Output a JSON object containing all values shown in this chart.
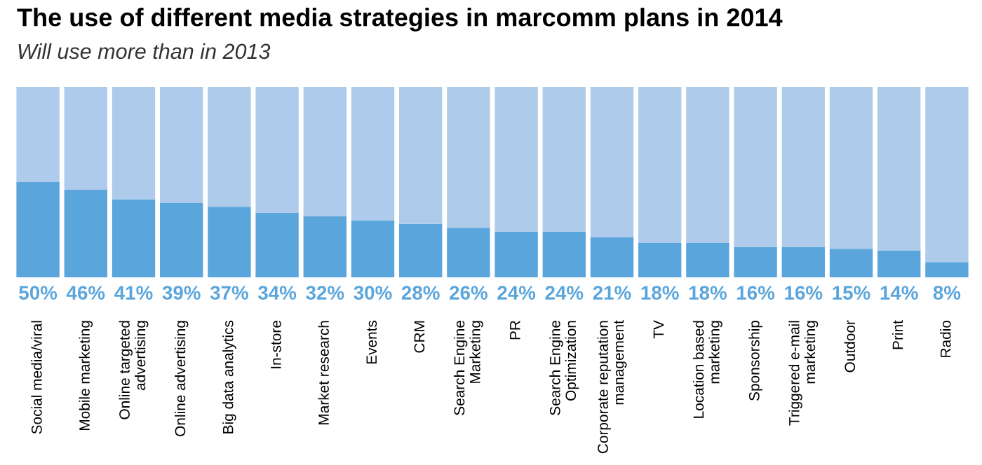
{
  "chart_data": {
    "type": "bar",
    "title": "The use of different media strategies in marcomm plans in 2014",
    "subtitle": "Will use more than in 2013",
    "categories": [
      "Social media/viral",
      "Mobile marketing",
      "Online targeted\nadvertising",
      "Online advertising",
      "Big data analytics",
      "In-store",
      "Market research",
      "Events",
      "CRM",
      "Search Engine\nMarketing",
      "PR",
      "Search Engine\nOptimization",
      "Corporate reputation\nmanagement",
      "TV",
      "Location based\nmarketing",
      "Sponsorship",
      "Triggered e-mail\nmarketing",
      "Outdoor",
      "Print",
      "Radio"
    ],
    "stacked": true,
    "ylim": [
      0,
      100
    ],
    "tick_labels": "x",
    "series": [
      {
        "color": "#5aa5dc",
        "values": [
          50,
          46,
          41,
          39,
          37,
          34,
          32,
          30,
          28,
          26,
          24,
          24,
          21,
          18,
          18,
          16,
          16,
          15,
          14,
          8
        ],
        "value_labels": [
          "50%",
          "46%",
          "41%",
          "39%",
          "37%",
          "34%",
          "32%",
          "30%",
          "28%",
          "26%",
          "24%",
          "24%",
          "21%",
          "18%",
          "18%",
          "16%",
          "16%",
          "15%",
          "14%",
          "8%"
        ]
      },
      {
        "color": "#aecbeb",
        "values": [
          50,
          54,
          59,
          61,
          63,
          66,
          68,
          70,
          72,
          74,
          76,
          76,
          79,
          82,
          82,
          84,
          84,
          85,
          86,
          92
        ]
      }
    ]
  }
}
